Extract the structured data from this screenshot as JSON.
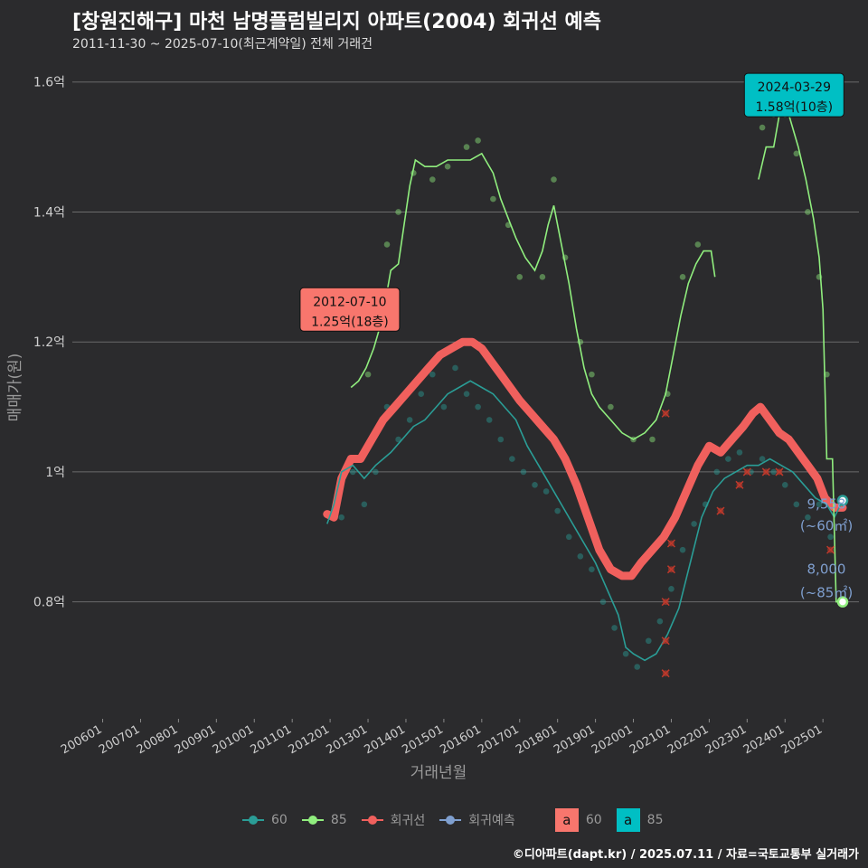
{
  "title": "[창원진해구] 마천 남명플럼빌리지 아파트(2004) 회귀선 예측",
  "subtitle": "2011-11-30 ~ 2025-07-10(최근계약일) 전체 거래건",
  "source": "©디아파트(dapt.kr) / 2025.07.11 / 자료=국토교통부 실거래가",
  "colors": {
    "background": "#2b2b2d",
    "s60": "#2a9d96",
    "s85": "#90ee7e",
    "regression": "#f0605d",
    "forecast": "#7f9fcf",
    "callout60": "#f8766d",
    "callout85": "#00bfc4",
    "cancel": "#c0392b"
  },
  "legend": {
    "items": [
      "60",
      "85",
      "회귀선",
      "회귀예측"
    ],
    "box_letter": "a",
    "box_labels": [
      "60",
      "85"
    ]
  },
  "chart_data": {
    "type": "line",
    "xlabel": "거래년월",
    "ylabel": "매매가(원)",
    "x_ticks": [
      "200601",
      "200701",
      "200801",
      "200901",
      "201001",
      "201101",
      "201201",
      "201301",
      "201401",
      "201501",
      "201601",
      "201701",
      "201801",
      "201901",
      "202001",
      "202101",
      "202201",
      "202301",
      "202401",
      "202501"
    ],
    "y_ticks": [
      {
        "value": 0.8,
        "label": "0.8억"
      },
      {
        "value": 1.0,
        "label": "1억"
      },
      {
        "value": 1.2,
        "label": "1.2억"
      },
      {
        "value": 1.4,
        "label": "1.4억"
      },
      {
        "value": 1.6,
        "label": "1.6억"
      }
    ],
    "ylim": [
      0.62,
      1.64
    ],
    "xlim": [
      2005.2,
      2025.95
    ],
    "series": [
      {
        "name": "60",
        "points": [
          [
            2011.92,
            0.92
          ],
          [
            2012.1,
            0.95
          ],
          [
            2012.3,
            1.0
          ],
          [
            2012.6,
            1.01
          ],
          [
            2012.9,
            0.99
          ],
          [
            2013.2,
            1.01
          ],
          [
            2013.6,
            1.03
          ],
          [
            2013.9,
            1.05
          ],
          [
            2014.2,
            1.07
          ],
          [
            2014.5,
            1.08
          ],
          [
            2014.8,
            1.1
          ],
          [
            2015.1,
            1.12
          ],
          [
            2015.4,
            1.13
          ],
          [
            2015.7,
            1.14
          ],
          [
            2016.0,
            1.13
          ],
          [
            2016.3,
            1.12
          ],
          [
            2016.6,
            1.1
          ],
          [
            2016.9,
            1.08
          ],
          [
            2017.2,
            1.04
          ],
          [
            2017.5,
            1.01
          ],
          [
            2017.8,
            0.98
          ],
          [
            2018.1,
            0.95
          ],
          [
            2018.4,
            0.92
          ],
          [
            2018.7,
            0.89
          ],
          [
            2019.0,
            0.86
          ],
          [
            2019.3,
            0.82
          ],
          [
            2019.6,
            0.78
          ],
          [
            2019.8,
            0.73
          ],
          [
            2020.0,
            0.72
          ],
          [
            2020.3,
            0.71
          ],
          [
            2020.6,
            0.72
          ],
          [
            2020.9,
            0.75
          ],
          [
            2021.2,
            0.79
          ],
          [
            2021.5,
            0.86
          ],
          [
            2021.8,
            0.93
          ],
          [
            2022.1,
            0.97
          ],
          [
            2022.4,
            0.99
          ],
          [
            2022.7,
            1.0
          ],
          [
            2023.0,
            1.01
          ],
          [
            2023.3,
            1.01
          ],
          [
            2023.6,
            1.02
          ],
          [
            2023.9,
            1.01
          ],
          [
            2024.2,
            1.0
          ],
          [
            2024.5,
            0.98
          ],
          [
            2024.8,
            0.96
          ],
          [
            2025.1,
            0.95
          ],
          [
            2025.3,
            0.93
          ],
          [
            2025.52,
            0.956
          ]
        ]
      },
      {
        "name": "85",
        "segments": [
          [
            [
              2012.55,
              1.13
            ],
            [
              2012.75,
              1.14
            ],
            [
              2012.95,
              1.16
            ],
            [
              2013.15,
              1.19
            ],
            [
              2013.3,
              1.22
            ],
            [
              2013.45,
              1.26
            ],
            [
              2013.6,
              1.31
            ],
            [
              2013.8,
              1.32
            ],
            [
              2013.95,
              1.38
            ],
            [
              2014.1,
              1.44
            ],
            [
              2014.25,
              1.48
            ],
            [
              2014.5,
              1.47
            ],
            [
              2014.8,
              1.47
            ],
            [
              2015.1,
              1.48
            ],
            [
              2015.4,
              1.48
            ],
            [
              2015.7,
              1.48
            ],
            [
              2016.0,
              1.49
            ],
            [
              2016.3,
              1.46
            ],
            [
              2016.5,
              1.42
            ],
            [
              2016.7,
              1.39
            ],
            [
              2016.9,
              1.36
            ],
            [
              2017.15,
              1.33
            ],
            [
              2017.4,
              1.31
            ],
            [
              2017.6,
              1.34
            ],
            [
              2017.75,
              1.38
            ],
            [
              2017.9,
              1.41
            ],
            [
              2018.1,
              1.35
            ],
            [
              2018.3,
              1.29
            ],
            [
              2018.5,
              1.22
            ],
            [
              2018.7,
              1.16
            ],
            [
              2018.9,
              1.12
            ],
            [
              2019.1,
              1.1
            ],
            [
              2019.4,
              1.08
            ],
            [
              2019.7,
              1.06
            ],
            [
              2020.0,
              1.05
            ],
            [
              2020.3,
              1.06
            ],
            [
              2020.6,
              1.08
            ],
            [
              2020.85,
              1.12
            ],
            [
              2021.05,
              1.18
            ],
            [
              2021.25,
              1.24
            ],
            [
              2021.45,
              1.29
            ],
            [
              2021.65,
              1.32
            ],
            [
              2021.85,
              1.34
            ],
            [
              2022.05,
              1.34
            ],
            [
              2022.15,
              1.3
            ]
          ],
          [
            [
              2023.3,
              1.45
            ],
            [
              2023.5,
              1.5
            ],
            [
              2023.7,
              1.5
            ],
            [
              2023.85,
              1.55
            ],
            [
              2024.0,
              1.57
            ],
            [
              2024.15,
              1.54
            ],
            [
              2024.35,
              1.5
            ],
            [
              2024.55,
              1.45
            ],
            [
              2024.75,
              1.39
            ],
            [
              2024.9,
              1.33
            ],
            [
              2025.0,
              1.25
            ],
            [
              2025.1,
              1.02
            ],
            [
              2025.25,
              1.02
            ],
            [
              2025.35,
              0.8
            ],
            [
              2025.52,
              0.8
            ]
          ]
        ]
      },
      {
        "name": "회귀선",
        "points": [
          [
            2011.92,
            0.935
          ],
          [
            2012.1,
            0.93
          ],
          [
            2012.3,
            0.99
          ],
          [
            2012.55,
            1.02
          ],
          [
            2012.8,
            1.02
          ],
          [
            2013.1,
            1.05
          ],
          [
            2013.4,
            1.08
          ],
          [
            2013.7,
            1.1
          ],
          [
            2014.0,
            1.12
          ],
          [
            2014.3,
            1.14
          ],
          [
            2014.6,
            1.16
          ],
          [
            2014.9,
            1.18
          ],
          [
            2015.2,
            1.19
          ],
          [
            2015.5,
            1.2
          ],
          [
            2015.75,
            1.2
          ],
          [
            2016.0,
            1.19
          ],
          [
            2016.25,
            1.17
          ],
          [
            2016.5,
            1.15
          ],
          [
            2016.75,
            1.13
          ],
          [
            2017.0,
            1.11
          ],
          [
            2017.3,
            1.09
          ],
          [
            2017.6,
            1.07
          ],
          [
            2017.9,
            1.05
          ],
          [
            2018.2,
            1.02
          ],
          [
            2018.5,
            0.98
          ],
          [
            2018.8,
            0.93
          ],
          [
            2019.1,
            0.88
          ],
          [
            2019.4,
            0.85
          ],
          [
            2019.7,
            0.84
          ],
          [
            2019.95,
            0.84
          ],
          [
            2020.2,
            0.86
          ],
          [
            2020.5,
            0.88
          ],
          [
            2020.8,
            0.9
          ],
          [
            2021.1,
            0.93
          ],
          [
            2021.4,
            0.97
          ],
          [
            2021.7,
            1.01
          ],
          [
            2022.0,
            1.04
          ],
          [
            2022.3,
            1.03
          ],
          [
            2022.6,
            1.05
          ],
          [
            2022.9,
            1.07
          ],
          [
            2023.15,
            1.09
          ],
          [
            2023.35,
            1.1
          ],
          [
            2023.6,
            1.08
          ],
          [
            2023.85,
            1.06
          ],
          [
            2024.1,
            1.05
          ],
          [
            2024.35,
            1.03
          ],
          [
            2024.6,
            1.01
          ],
          [
            2024.85,
            0.99
          ],
          [
            2025.05,
            0.96
          ],
          [
            2025.3,
            0.945
          ],
          [
            2025.52,
            0.945
          ]
        ]
      }
    ],
    "scatter60": [
      [
        2012.3,
        0.93
      ],
      [
        2012.6,
        1.0
      ],
      [
        2012.9,
        0.95
      ],
      [
        2013.2,
        1.0
      ],
      [
        2013.5,
        1.1
      ],
      [
        2013.8,
        1.05
      ],
      [
        2014.1,
        1.08
      ],
      [
        2014.4,
        1.12
      ],
      [
        2014.7,
        1.15
      ],
      [
        2015.0,
        1.1
      ],
      [
        2015.3,
        1.16
      ],
      [
        2015.6,
        1.12
      ],
      [
        2015.9,
        1.1
      ],
      [
        2016.2,
        1.08
      ],
      [
        2016.5,
        1.05
      ],
      [
        2016.8,
        1.02
      ],
      [
        2017.1,
        1.0
      ],
      [
        2017.4,
        0.98
      ],
      [
        2017.7,
        0.97
      ],
      [
        2018.0,
        0.94
      ],
      [
        2018.3,
        0.9
      ],
      [
        2018.6,
        0.87
      ],
      [
        2018.9,
        0.85
      ],
      [
        2019.2,
        0.8
      ],
      [
        2019.5,
        0.76
      ],
      [
        2019.8,
        0.72
      ],
      [
        2020.1,
        0.7
      ],
      [
        2020.4,
        0.74
      ],
      [
        2020.7,
        0.77
      ],
      [
        2021.0,
        0.82
      ],
      [
        2021.3,
        0.88
      ],
      [
        2021.6,
        0.92
      ],
      [
        2021.9,
        0.95
      ],
      [
        2022.2,
        1.0
      ],
      [
        2022.5,
        1.02
      ],
      [
        2022.8,
        1.03
      ],
      [
        2023.1,
        1.0
      ],
      [
        2023.4,
        1.02
      ],
      [
        2023.7,
        1.0
      ],
      [
        2024.0,
        0.98
      ],
      [
        2024.3,
        0.95
      ],
      [
        2024.6,
        0.93
      ],
      [
        2024.9,
        0.95
      ],
      [
        2025.2,
        0.9
      ]
    ],
    "scatter85": [
      [
        2013.0,
        1.15
      ],
      [
        2013.5,
        1.35
      ],
      [
        2013.8,
        1.4
      ],
      [
        2014.2,
        1.46
      ],
      [
        2014.7,
        1.45
      ],
      [
        2015.1,
        1.47
      ],
      [
        2015.6,
        1.5
      ],
      [
        2015.9,
        1.51
      ],
      [
        2016.3,
        1.42
      ],
      [
        2016.7,
        1.38
      ],
      [
        2017.0,
        1.3
      ],
      [
        2017.6,
        1.3
      ],
      [
        2017.9,
        1.45
      ],
      [
        2018.2,
        1.33
      ],
      [
        2018.6,
        1.2
      ],
      [
        2018.9,
        1.15
      ],
      [
        2019.4,
        1.1
      ],
      [
        2020.0,
        1.05
      ],
      [
        2020.5,
        1.05
      ],
      [
        2020.9,
        1.12
      ],
      [
        2021.3,
        1.3
      ],
      [
        2021.7,
        1.35
      ],
      [
        2023.4,
        1.53
      ],
      [
        2023.7,
        1.55
      ],
      [
        2024.0,
        1.55
      ],
      [
        2024.3,
        1.49
      ],
      [
        2024.6,
        1.4
      ],
      [
        2024.9,
        1.3
      ],
      [
        2025.1,
        1.15
      ]
    ],
    "cancelled": [
      [
        2020.85,
        1.09
      ],
      [
        2020.85,
        0.8
      ],
      [
        2020.85,
        0.74
      ],
      [
        2020.85,
        0.69
      ],
      [
        2021.0,
        0.85
      ],
      [
        2021.0,
        0.89
      ],
      [
        2022.3,
        0.94
      ],
      [
        2022.8,
        0.98
      ],
      [
        2023.0,
        1.0
      ],
      [
        2023.5,
        1.0
      ],
      [
        2023.85,
        1.0
      ],
      [
        2025.2,
        0.88
      ]
    ],
    "callouts": [
      {
        "date": "2012-07-10",
        "price": "1.25억(18층)",
        "series": "60",
        "x": 2012.52,
        "y": 1.25
      },
      {
        "date": "2024-03-29",
        "price": "1.58억(10층)",
        "series": "85",
        "x": 2024.24,
        "y": 1.58
      }
    ],
    "end_labels": [
      {
        "value": "9,558",
        "area": "(~60㎡)",
        "y": 0.956,
        "series": "60"
      },
      {
        "value": "8,000",
        "area": "(~85㎡)",
        "y": 0.8,
        "series": "85"
      }
    ]
  }
}
